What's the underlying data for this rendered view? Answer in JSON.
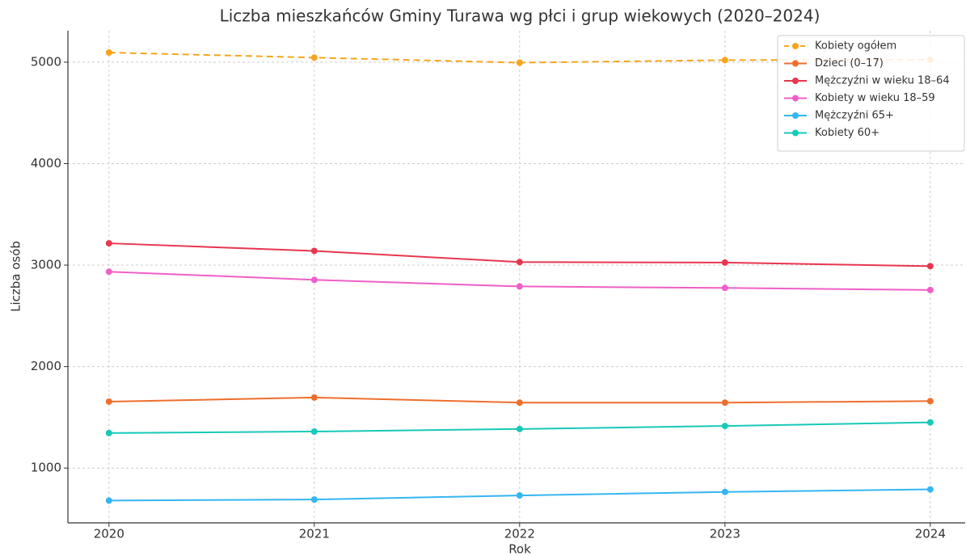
{
  "chart_data": {
    "type": "line",
    "title": "Liczba mieszkańców Gminy Turawa wg płci i grup wiekowych (2020–2024)",
    "xlabel": "Rok",
    "ylabel": "Liczba osób",
    "x": [
      2020,
      2021,
      2022,
      2023,
      2024
    ],
    "xlim": [
      2019.8,
      2024.17
    ],
    "xticks": [
      2020,
      2021,
      2022,
      2023,
      2024
    ],
    "ylim": [
      460,
      5310
    ],
    "yticks": [
      1000,
      2000,
      3000,
      4000,
      5000
    ],
    "grid": true,
    "legend": "upper right",
    "series": [
      {
        "name": "Kobiety ogółem",
        "color": "#f6a51c",
        "linestyle": "dashed",
        "values": [
          5095,
          5045,
          4995,
          5020,
          5025
        ]
      },
      {
        "name": "Dzieci (0–17)",
        "color": "#ee6e2d",
        "linestyle": "solid",
        "values": [
          1655,
          1695,
          1645,
          1645,
          1660
        ]
      },
      {
        "name": "Mężczyźni w wieku 18–64",
        "color": "#e8364e",
        "linestyle": "solid",
        "values": [
          3215,
          3140,
          3030,
          3025,
          2990
        ]
      },
      {
        "name": "Kobiety w wieku 18–59",
        "color": "#ef5fc8",
        "linestyle": "solid",
        "values": [
          2935,
          2855,
          2790,
          2775,
          2755
        ]
      },
      {
        "name": "Mężczyźni 65+",
        "color": "#35b6f2",
        "linestyle": "solid",
        "values": [
          680,
          690,
          730,
          765,
          790
        ]
      },
      {
        "name": "Kobiety 60+",
        "color": "#17c9b7",
        "linestyle": "solid",
        "values": [
          1345,
          1360,
          1385,
          1415,
          1450
        ]
      }
    ]
  }
}
